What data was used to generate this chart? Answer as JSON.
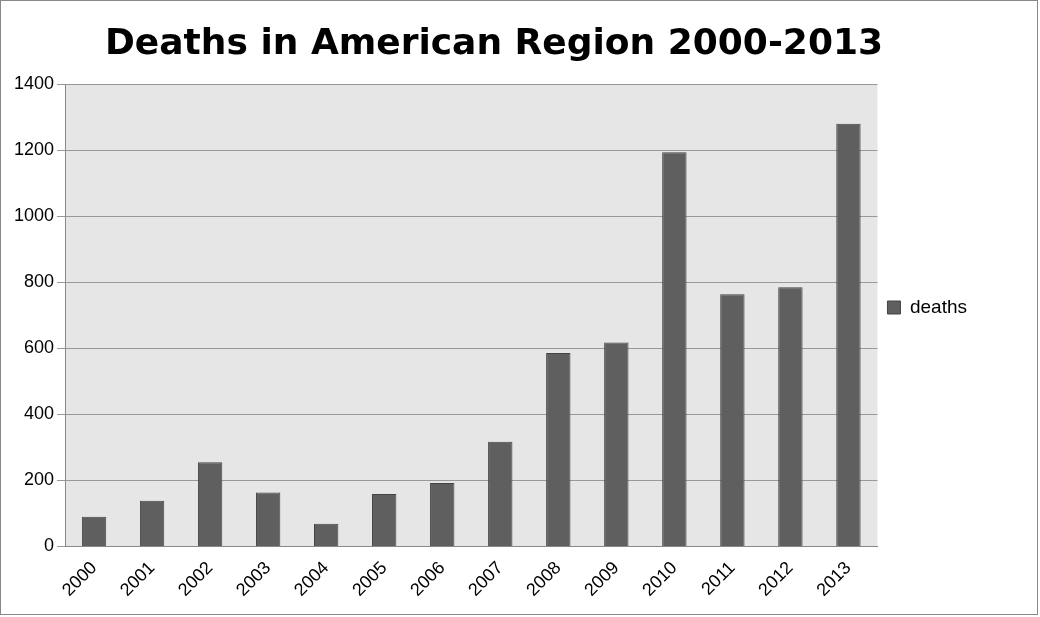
{
  "chart_data": {
    "type": "bar",
    "title": "Deaths in American Region 2000-2013",
    "categories": [
      "2000",
      "2001",
      "2002",
      "2003",
      "2004",
      "2005",
      "2006",
      "2007",
      "2008",
      "2009",
      "2010",
      "2011",
      "2012",
      "2013"
    ],
    "series": [
      {
        "name": "deaths",
        "color": "#5f5f5f",
        "values": [
          90,
          138,
          255,
          163,
          69,
          159,
          192,
          317,
          586,
          618,
          1194,
          764,
          785,
          1280
        ]
      }
    ],
    "ylim": [
      0,
      1400
    ],
    "yticks": [
      0,
      200,
      400,
      600,
      800,
      1000,
      1200,
      1400
    ],
    "grid": "y",
    "legend": "right"
  }
}
